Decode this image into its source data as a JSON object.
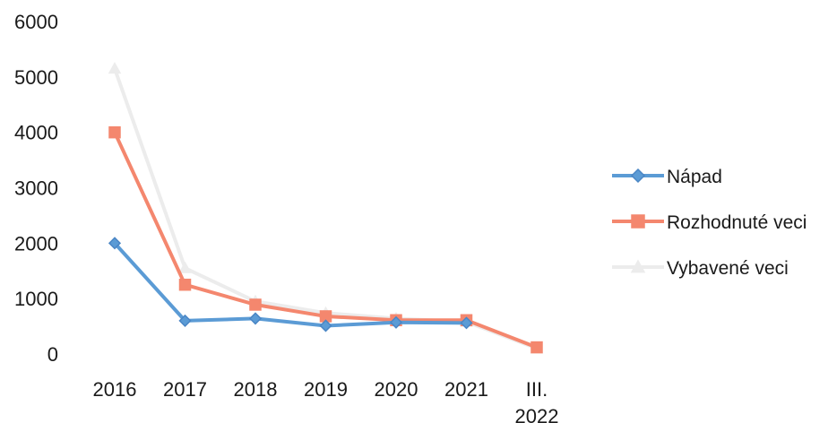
{
  "chart_data": {
    "type": "line",
    "categories": [
      "2016",
      "2017",
      "2018",
      "2019",
      "2020",
      "2021",
      "III.\n2022"
    ],
    "ylim": [
      0,
      6000
    ],
    "yticks": [
      0,
      1000,
      2000,
      3000,
      4000,
      5000,
      6000
    ],
    "grid": false,
    "legend_position": "right",
    "series": [
      {
        "name": "Nápad",
        "color": "#5b9bd5",
        "marker": "diamond",
        "values": [
          2000,
          600,
          640,
          510,
          570,
          560,
          null
        ]
      },
      {
        "name": "Rozhodnuté veci",
        "color": "#f4876e",
        "marker": "square",
        "values": [
          4000,
          1250,
          890,
          680,
          610,
          610,
          120
        ]
      },
      {
        "name": "Vybavené veci",
        "color": "#ececec",
        "marker": "triangle",
        "values": [
          5150,
          1550,
          950,
          740,
          640,
          580,
          100
        ]
      }
    ]
  }
}
